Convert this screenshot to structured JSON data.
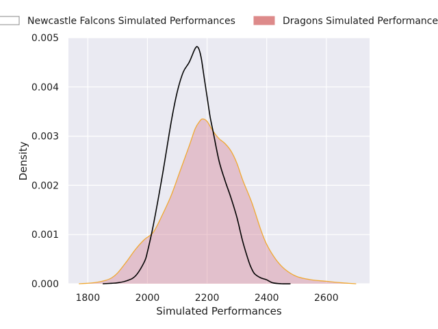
{
  "chart_data": {
    "type": "area",
    "title": "",
    "xlabel": "Simulated Performances",
    "ylabel": "Density",
    "xlim": [
      1735,
      2745
    ],
    "ylim": [
      0,
      0.005
    ],
    "xticks": [
      1800,
      2000,
      2200,
      2400,
      2600
    ],
    "xtick_labels": [
      "1800",
      "2000",
      "2200",
      "2400",
      "2600"
    ],
    "yticks": [
      0,
      0.001,
      0.002,
      0.003,
      0.004,
      0.005
    ],
    "ytick_labels": [
      "0.000",
      "0.001",
      "0.002",
      "0.003",
      "0.004",
      "0.005"
    ],
    "grid": true,
    "legend_position": "top",
    "series": [
      {
        "name": "Newcastle Falcons Simulated Performances",
        "style": "line",
        "color": "#000000",
        "x": [
          1850,
          1880,
          1900,
          1930,
          1960,
          1990,
          2000,
          2020,
          2050,
          2080,
          2100,
          2120,
          2140,
          2160,
          2170,
          2180,
          2190,
          2200,
          2210,
          2220,
          2240,
          2260,
          2280,
          2300,
          2320,
          2340,
          2350,
          2360,
          2380,
          2400,
          2420,
          2450,
          2480
        ],
        "values": [
          0.0,
          1e-05,
          2e-05,
          6e-05,
          0.00016,
          0.00045,
          0.00065,
          0.0012,
          0.0022,
          0.0033,
          0.0039,
          0.0043,
          0.0045,
          0.00478,
          0.0048,
          0.0046,
          0.0042,
          0.0038,
          0.0034,
          0.0031,
          0.0025,
          0.0021,
          0.00175,
          0.00135,
          0.00085,
          0.00045,
          0.0003,
          0.0002,
          0.00012,
          8e-05,
          2e-05,
          0.0,
          0.0
        ]
      },
      {
        "name": "Dragons Simulated Performances",
        "style": "area",
        "color": "#f0a830",
        "fill": "#d98e9e",
        "fill_opacity": 0.45,
        "x": [
          1770,
          1800,
          1830,
          1860,
          1880,
          1900,
          1930,
          1960,
          1990,
          2020,
          2050,
          2080,
          2110,
          2140,
          2160,
          2175,
          2185,
          2200,
          2220,
          2240,
          2260,
          2280,
          2300,
          2320,
          2350,
          2380,
          2400,
          2430,
          2460,
          2500,
          2550,
          2600,
          2650,
          2700
        ],
        "values": [
          0.0,
          1e-05,
          3e-05,
          7e-05,
          0.00012,
          0.00022,
          0.00045,
          0.0007,
          0.0009,
          0.00105,
          0.0014,
          0.0018,
          0.0023,
          0.0028,
          0.00315,
          0.0033,
          0.00335,
          0.0033,
          0.0031,
          0.00295,
          0.00285,
          0.0027,
          0.00245,
          0.0021,
          0.00165,
          0.0011,
          0.0008,
          0.0005,
          0.0003,
          0.00015,
          8e-05,
          5e-05,
          2e-05,
          0.0
        ]
      }
    ]
  }
}
